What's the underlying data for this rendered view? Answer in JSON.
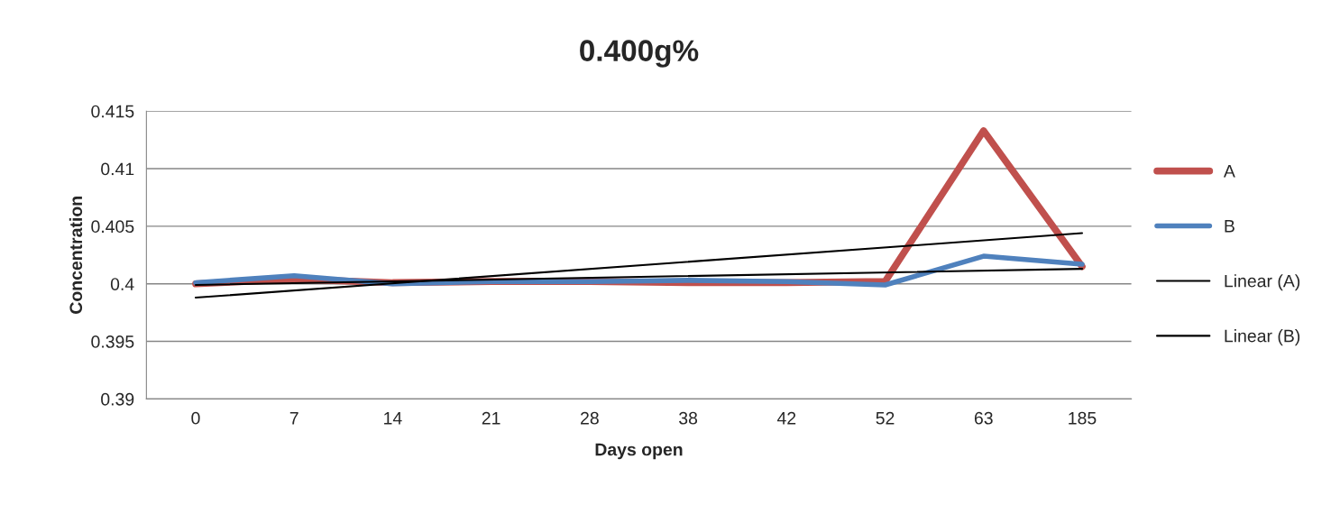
{
  "chart_data": {
    "type": "line",
    "title": "0.400g%",
    "xlabel": "Days open",
    "ylabel": "Concentration",
    "categories": [
      "0",
      "7",
      "14",
      "21",
      "28",
      "38",
      "42",
      "52",
      "63",
      "185"
    ],
    "series": [
      {
        "name": "A",
        "color": "#c0504d",
        "values": [
          0.4,
          0.4004,
          0.4001,
          0.4002,
          0.4002,
          0.4001,
          0.4001,
          0.4002,
          0.4133,
          0.4015
        ]
      },
      {
        "name": "B",
        "color": "#4f81bd",
        "values": [
          0.4001,
          0.4007,
          0.4,
          0.4002,
          0.4002,
          0.4003,
          0.4002,
          0.3999,
          0.4024,
          0.4017
        ]
      },
      {
        "name": "Linear (A)",
        "color": "#000000",
        "x": [
          "0",
          "185"
        ],
        "values": [
          0.3988,
          0.4044
        ]
      },
      {
        "name": "Linear (B)",
        "color": "#000000",
        "x": [
          "0",
          "185"
        ],
        "values": [
          0.3999,
          0.4013
        ]
      }
    ],
    "ylim": [
      0.39,
      0.415
    ],
    "yticks": [
      0.39,
      0.395,
      0.4,
      0.405,
      0.41,
      0.415
    ],
    "grid": "y",
    "legend": "right",
    "marker": "none",
    "line_style": "solid"
  }
}
